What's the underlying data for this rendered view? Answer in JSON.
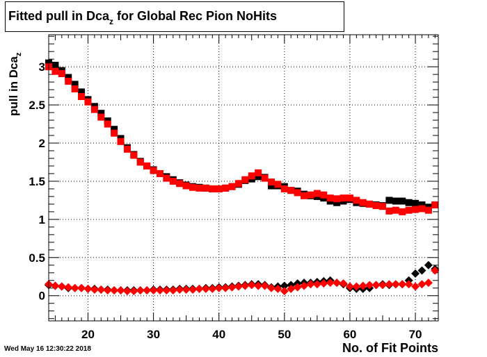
{
  "page": {
    "timestamp": "Wed May 16 12:30:22 2018"
  },
  "chart_data": {
    "type": "scatter",
    "title": "Fitted pull in Dca",
    "title_sub": "z",
    "title_rest": " for Global Rec Pion NoHits",
    "xlabel": "No. of Fit Points",
    "ylabel": "pull in Dca",
    "ylabel_sub": "z",
    "xlim": [
      14,
      73.5
    ],
    "ylim": [
      -0.33,
      3.42
    ],
    "xticks": [
      20,
      30,
      40,
      50,
      60,
      70
    ],
    "yticks": [
      0,
      0.5,
      1,
      1.5,
      2,
      2.5,
      3
    ],
    "ytick_labels": [
      "0",
      "0.5",
      "1",
      "1.5",
      "2",
      "2.5",
      "3"
    ],
    "grid": true,
    "colors": {
      "black": "#000000",
      "red": "#ff0000"
    },
    "series": [
      {
        "marker": "square",
        "color": "#000000",
        "x": [
          14,
          15,
          16,
          17,
          18,
          19,
          20,
          21,
          22,
          23,
          24,
          25,
          26,
          27,
          28,
          29,
          30,
          31,
          32,
          33,
          34,
          35,
          36,
          37,
          38,
          39,
          40,
          41,
          42,
          43,
          44,
          45,
          46,
          47,
          48,
          49,
          50,
          51,
          52,
          53,
          54,
          55,
          56,
          57,
          58,
          59,
          60,
          61,
          62,
          63,
          64,
          65,
          66,
          67,
          68,
          69,
          70,
          71,
          72,
          73
        ],
        "y": [
          3.05,
          3.02,
          2.95,
          2.86,
          2.77,
          2.67,
          2.57,
          2.48,
          2.39,
          2.29,
          2.18,
          2.06,
          1.94,
          1.85,
          1.76,
          1.7,
          1.65,
          1.6,
          1.56,
          1.52,
          1.48,
          1.45,
          1.43,
          1.42,
          1.41,
          1.4,
          1.4,
          1.41,
          1.43,
          1.46,
          1.51,
          1.53,
          1.56,
          1.55,
          1.44,
          1.44,
          1.43,
          1.38,
          1.37,
          1.33,
          1.31,
          1.3,
          1.28,
          1.24,
          1.22,
          1.24,
          1.26,
          1.22,
          1.21,
          1.2,
          1.19,
          1.18,
          1.25,
          1.24,
          1.24,
          1.22,
          1.21,
          1.19,
          1.16,
          1.19
        ]
      },
      {
        "marker": "square",
        "color": "#ff0000",
        "x": [
          14,
          15,
          16,
          17,
          18,
          19,
          20,
          21,
          22,
          23,
          24,
          25,
          26,
          27,
          28,
          29,
          30,
          31,
          32,
          33,
          34,
          35,
          36,
          37,
          38,
          39,
          40,
          41,
          42,
          43,
          44,
          45,
          46,
          47,
          48,
          49,
          50,
          51,
          52,
          53,
          54,
          55,
          56,
          57,
          58,
          59,
          60,
          61,
          62,
          63,
          64,
          65,
          66,
          67,
          68,
          69,
          70,
          71,
          72,
          73
        ],
        "y": [
          3.0,
          2.94,
          2.91,
          2.81,
          2.71,
          2.61,
          2.54,
          2.44,
          2.34,
          2.25,
          2.13,
          2.02,
          1.92,
          1.84,
          1.75,
          1.7,
          1.64,
          1.6,
          1.54,
          1.5,
          1.47,
          1.44,
          1.42,
          1.41,
          1.41,
          1.4,
          1.4,
          1.41,
          1.43,
          1.47,
          1.52,
          1.57,
          1.61,
          1.54,
          1.49,
          1.46,
          1.4,
          1.38,
          1.35,
          1.31,
          1.32,
          1.34,
          1.32,
          1.28,
          1.27,
          1.28,
          1.28,
          1.25,
          1.22,
          1.2,
          1.18,
          1.17,
          1.11,
          1.12,
          1.1,
          1.12,
          1.13,
          1.14,
          1.12,
          1.19
        ]
      },
      {
        "marker": "diamond",
        "color": "#000000",
        "x": [
          14,
          15,
          16,
          17,
          18,
          19,
          20,
          21,
          22,
          23,
          24,
          25,
          26,
          27,
          28,
          29,
          30,
          31,
          32,
          33,
          34,
          35,
          36,
          37,
          38,
          39,
          40,
          41,
          42,
          43,
          44,
          45,
          46,
          47,
          48,
          49,
          50,
          51,
          52,
          53,
          54,
          55,
          56,
          57,
          58,
          59,
          60,
          61,
          62,
          63,
          64,
          65,
          66,
          67,
          68,
          69,
          70,
          71,
          72,
          73
        ],
        "y": [
          0.14,
          0.13,
          0.12,
          0.1,
          0.1,
          0.1,
          0.09,
          0.09,
          0.08,
          0.08,
          0.07,
          0.07,
          0.07,
          0.07,
          0.07,
          0.07,
          0.08,
          0.08,
          0.08,
          0.08,
          0.09,
          0.09,
          0.09,
          0.09,
          0.1,
          0.1,
          0.11,
          0.11,
          0.12,
          0.13,
          0.14,
          0.15,
          0.15,
          0.14,
          0.11,
          0.12,
          0.13,
          0.14,
          0.16,
          0.17,
          0.17,
          0.18,
          0.19,
          0.2,
          0.17,
          0.15,
          0.1,
          0.09,
          0.09,
          0.1,
          0.14,
          0.15,
          0.14,
          0.15,
          0.15,
          0.2,
          0.29,
          0.33,
          0.4,
          0.35
        ]
      },
      {
        "marker": "diamond",
        "color": "#ff0000",
        "x": [
          14,
          15,
          16,
          17,
          18,
          19,
          20,
          21,
          22,
          23,
          24,
          25,
          26,
          27,
          28,
          29,
          30,
          31,
          32,
          33,
          34,
          35,
          36,
          37,
          38,
          39,
          40,
          41,
          42,
          43,
          44,
          45,
          46,
          47,
          48,
          49,
          50,
          51,
          52,
          53,
          54,
          55,
          56,
          57,
          58,
          59,
          60,
          61,
          62,
          63,
          64,
          65,
          66,
          67,
          68,
          69,
          70,
          71,
          72,
          73
        ],
        "y": [
          0.15,
          0.13,
          0.12,
          0.11,
          0.1,
          0.1,
          0.09,
          0.08,
          0.08,
          0.07,
          0.07,
          0.07,
          0.06,
          0.06,
          0.07,
          0.07,
          0.07,
          0.07,
          0.07,
          0.07,
          0.08,
          0.08,
          0.08,
          0.09,
          0.09,
          0.09,
          0.1,
          0.1,
          0.11,
          0.12,
          0.13,
          0.14,
          0.13,
          0.13,
          0.1,
          0.09,
          0.06,
          0.09,
          0.11,
          0.13,
          0.15,
          0.15,
          0.16,
          0.17,
          0.17,
          0.16,
          0.12,
          0.12,
          0.13,
          0.14,
          0.14,
          0.14,
          0.15,
          0.15,
          0.15,
          0.15,
          0.12,
          0.15,
          0.17,
          0.33
        ]
      }
    ]
  }
}
